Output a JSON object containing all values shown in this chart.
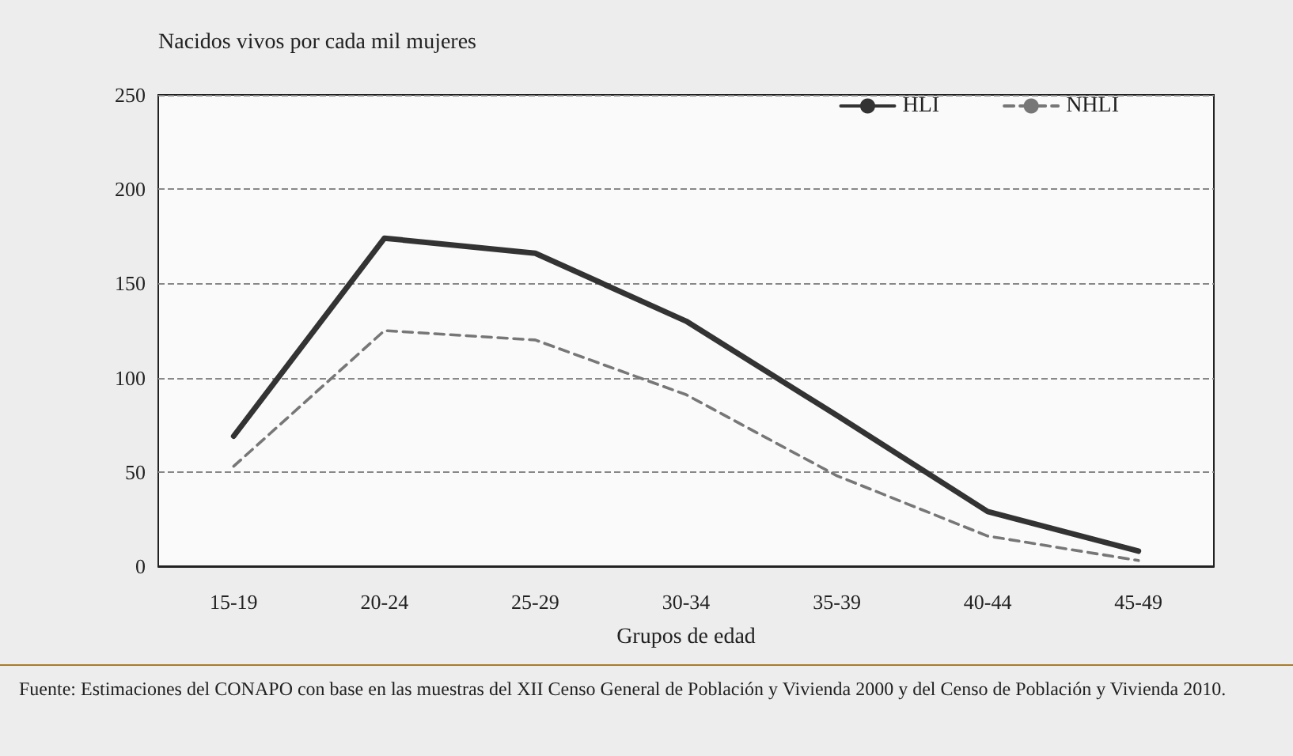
{
  "chart_data": {
    "type": "line",
    "ylabel": "Nacidos vivos por cada mil mujeres",
    "xlabel": "Grupos de edad",
    "categories": [
      "15-19",
      "20-24",
      "25-29",
      "30-34",
      "35-39",
      "40-44",
      "45-49"
    ],
    "series": [
      {
        "name": "HLI",
        "color": "#333333",
        "line_style": "solid",
        "values": [
          69,
          174,
          166,
          130,
          80,
          29,
          8
        ]
      },
      {
        "name": "NHLI",
        "color": "#777777",
        "line_style": "dashed",
        "values": [
          53,
          125,
          120,
          91,
          48,
          16,
          3
        ]
      }
    ],
    "ylim": [
      0,
      250
    ],
    "yticks": [
      0,
      50,
      100,
      150,
      200,
      250
    ],
    "grid": "y",
    "legend": "top right",
    "marker": "none",
    "annotations": [
      "Fuente: Estimaciones del CONAPO con base en las muestras del XII Censo General de Población y Vivienda 2000 y del Censo de Población y Vivienda 2010."
    ]
  }
}
